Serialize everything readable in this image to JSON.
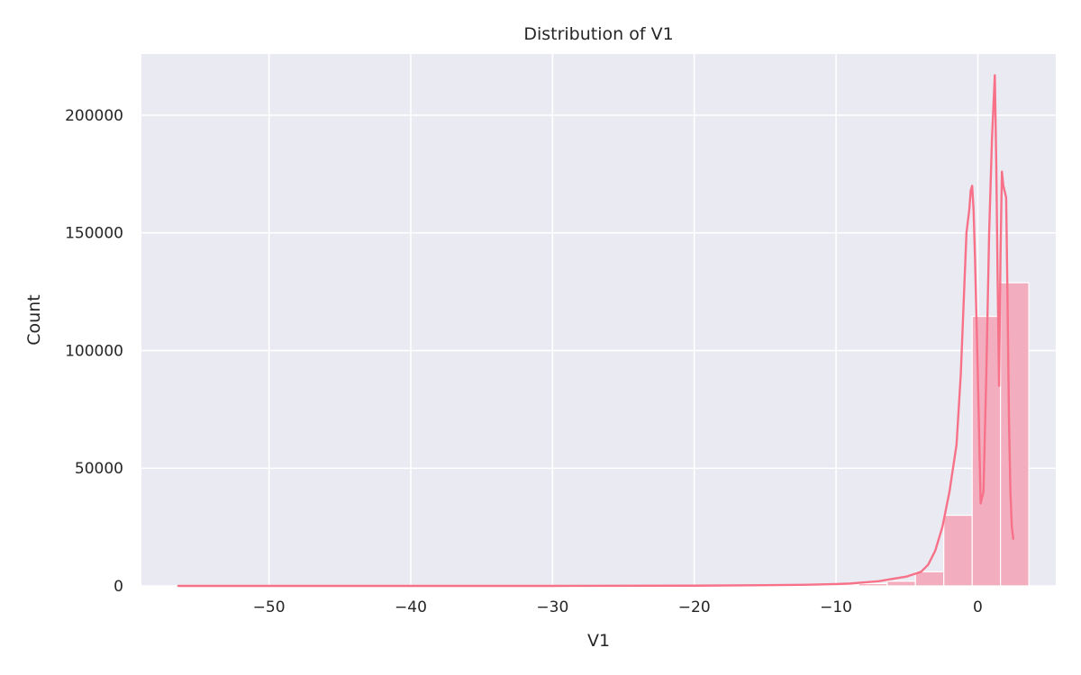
{
  "chart_data": {
    "type": "bar",
    "title": "Distribution of V1",
    "xlabel": "V1",
    "ylabel": "Count",
    "xlim": [
      -59.0,
      5.5
    ],
    "ylim": [
      0,
      226000
    ],
    "xticks": [
      -50,
      -40,
      -30,
      -20,
      -10,
      0
    ],
    "xtick_labels": [
      "−50",
      "−40",
      "−30",
      "−20",
      "−10",
      "0"
    ],
    "yticks": [
      0,
      50000,
      100000,
      150000,
      200000
    ],
    "ytick_labels": [
      "0",
      "50000",
      "100000",
      "150000",
      "200000"
    ],
    "grid": true,
    "background_color": "#eaeaf2",
    "bar_color": "#f2aebe",
    "kde_color": "#f77189",
    "bins": [
      {
        "x0": -56.4,
        "x1": -54.4,
        "count": 10
      },
      {
        "x0": -54.4,
        "x1": -52.4,
        "count": 0
      },
      {
        "x0": -52.4,
        "x1": -50.4,
        "count": 0
      },
      {
        "x0": -50.4,
        "x1": -48.4,
        "count": 0
      },
      {
        "x0": -48.4,
        "x1": -46.4,
        "count": 0
      },
      {
        "x0": -46.4,
        "x1": -44.4,
        "count": 0
      },
      {
        "x0": -44.4,
        "x1": -42.4,
        "count": 0
      },
      {
        "x0": -42.4,
        "x1": -40.4,
        "count": 0
      },
      {
        "x0": -40.4,
        "x1": -38.4,
        "count": 0
      },
      {
        "x0": -38.4,
        "x1": -36.4,
        "count": 0
      },
      {
        "x0": -36.4,
        "x1": -34.4,
        "count": 5
      },
      {
        "x0": -34.4,
        "x1": -32.4,
        "count": 10
      },
      {
        "x0": -32.4,
        "x1": -30.4,
        "count": 15
      },
      {
        "x0": -30.4,
        "x1": -28.4,
        "count": 20
      },
      {
        "x0": -28.4,
        "x1": -26.4,
        "count": 30
      },
      {
        "x0": -26.4,
        "x1": -24.4,
        "count": 40
      },
      {
        "x0": -24.4,
        "x1": -22.4,
        "count": 50
      },
      {
        "x0": -22.4,
        "x1": -20.4,
        "count": 60
      },
      {
        "x0": -20.4,
        "x1": -18.4,
        "count": 80
      },
      {
        "x0": -18.4,
        "x1": -16.4,
        "count": 100
      },
      {
        "x0": -16.4,
        "x1": -14.4,
        "count": 150
      },
      {
        "x0": -14.4,
        "x1": -12.4,
        "count": 200
      },
      {
        "x0": -12.4,
        "x1": -10.4,
        "count": 300
      },
      {
        "x0": -10.4,
        "x1": -8.4,
        "count": 500
      },
      {
        "x0": -8.4,
        "x1": -6.4,
        "count": 1000
      },
      {
        "x0": -6.4,
        "x1": -4.4,
        "count": 2000
      },
      {
        "x0": -4.4,
        "x1": -2.4,
        "count": 6000
      },
      {
        "x0": -2.4,
        "x1": -0.4,
        "count": 30000
      },
      {
        "x0": -0.4,
        "x1": 1.6,
        "count": 114500
      },
      {
        "x0": 1.6,
        "x1": 3.6,
        "count": 128800
      }
    ],
    "kde": {
      "x": [
        -56.4,
        -50,
        -40,
        -30,
        -20,
        -15,
        -12,
        -10,
        -9,
        -8,
        -7,
        -6,
        -5,
        -4,
        -3.5,
        -3,
        -2.5,
        -2,
        -1.5,
        -1.2,
        -1.0,
        -0.8,
        -0.6,
        -0.5,
        -0.4,
        -0.3,
        -0.2,
        0.0,
        0.2,
        0.4,
        0.6,
        0.8,
        1.0,
        1.2,
        1.3,
        1.4,
        1.5,
        1.6,
        1.7,
        1.8,
        2.0,
        2.1,
        2.2,
        2.3,
        2.4,
        2.5
      ],
      "y": [
        0,
        0,
        0,
        0,
        100,
        300,
        500,
        800,
        1000,
        1500,
        2000,
        3000,
        4000,
        6000,
        9000,
        15000,
        25000,
        40000,
        60000,
        90000,
        120000,
        150000,
        160000,
        168000,
        170000,
        160000,
        140000,
        90000,
        35000,
        40000,
        90000,
        150000,
        190000,
        217000,
        180000,
        130000,
        85000,
        140000,
        176000,
        170000,
        165000,
        120000,
        70000,
        40000,
        25000,
        20000
      ]
    }
  }
}
